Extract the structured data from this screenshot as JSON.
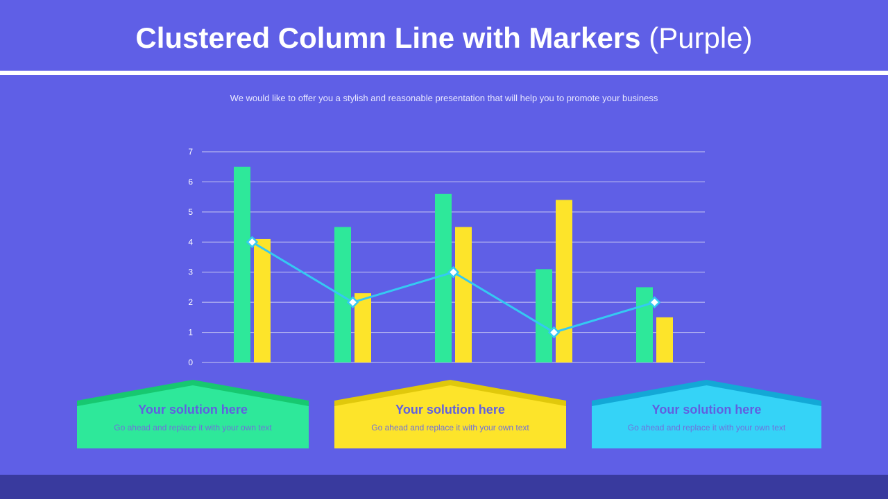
{
  "header": {
    "title_main": "Clustered Column Line with Markers",
    "title_paren": "(Purple)",
    "subtitle": "We would like to offer you a stylish and reasonable presentation that will help you to promote your business"
  },
  "chart_data": {
    "type": "bar",
    "categories": [
      "",
      "",
      "",
      "",
      ""
    ],
    "series": [
      {
        "type": "bar",
        "color": "#2ee89a",
        "values": [
          6.5,
          4.5,
          5.6,
          3.1,
          2.5
        ]
      },
      {
        "type": "bar",
        "color": "#fde42a",
        "values": [
          4.1,
          2.3,
          4.5,
          5.4,
          1.5
        ]
      },
      {
        "type": "line",
        "marker": "diamond",
        "color": "#35c9f2",
        "values": [
          4,
          2,
          3,
          1,
          2
        ]
      }
    ],
    "y_ticks": [
      "0",
      "1",
      "2",
      "3",
      "4",
      "5",
      "6",
      "7"
    ],
    "ylim": [
      0,
      7
    ],
    "grid": true,
    "legend": "none"
  },
  "cards": [
    {
      "title": "Your solution here",
      "text": "Go ahead and replace it with your own text",
      "color": "#2ee89a",
      "roof_color": "#17c870"
    },
    {
      "title": "Your solution here",
      "text": "Go ahead and replace it with your own text",
      "color": "#fde42a",
      "roof_color": "#e0c80c"
    },
    {
      "title": "Your solution here",
      "text": "Go ahead and replace it with your own text",
      "color": "#35d3f7",
      "roof_color": "#13a8d6"
    }
  ],
  "colors": {
    "background": "#5f5fe6",
    "footer": "#393a9e",
    "grid": "#c9c9f2"
  }
}
